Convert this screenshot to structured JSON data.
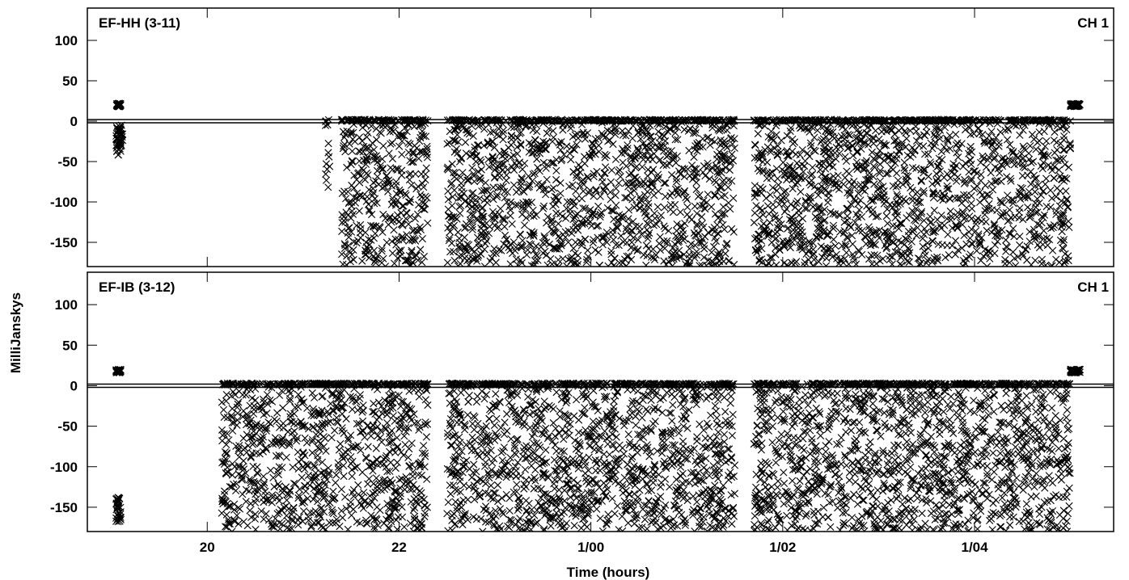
{
  "chart_data": {
    "type": "scatter",
    "marker": "x",
    "color": "#000000",
    "xlabel": "Time (hours)",
    "ylabel": "MilliJanskys",
    "xlim": [
      18.75,
      29.45
    ],
    "x_ticks": [
      {
        "value": 20,
        "label": "20"
      },
      {
        "value": 22,
        "label": "22"
      },
      {
        "value": 24,
        "label": "1/00"
      },
      {
        "value": 26,
        "label": "1/02"
      },
      {
        "value": 28,
        "label": "1/04"
      }
    ],
    "panels": [
      {
        "title": "EF-HH (3-11)",
        "channel": "CH 1",
        "ylim": [
          -180,
          140
        ],
        "y_ticks": [
          100,
          50,
          0,
          -50,
          -100,
          -150
        ],
        "groups": [
          {
            "x_range": [
              19.05,
              19.1
            ],
            "y_range": [
              18,
              22
            ],
            "dense": true
          },
          {
            "x_range": [
              19.05,
              19.12
            ],
            "y_range": [
              -42,
              -5
            ],
            "dense": true
          },
          {
            "x_range": [
              21.22,
              21.28
            ],
            "y_range": [
              -95,
              2
            ],
            "dense": false
          },
          {
            "x_range": [
              21.4,
              22.3
            ],
            "y_range": [
              -180,
              2
            ],
            "dense": true
          },
          {
            "x_range": [
              22.5,
              25.5
            ],
            "y_range": [
              -180,
              2
            ],
            "dense": true
          },
          {
            "x_range": [
              25.7,
              29.0
            ],
            "y_range": [
              -180,
              2
            ],
            "dense": true
          },
          {
            "x_range": [
              29.0,
              29.1
            ],
            "y_range": [
              18,
              22
            ],
            "dense": true
          }
        ]
      },
      {
        "title": "EF-IB (3-12)",
        "channel": "CH 1",
        "ylim": [
          -180,
          140
        ],
        "y_ticks": [
          100,
          50,
          0,
          -50,
          -100,
          -150
        ],
        "groups": [
          {
            "x_range": [
              19.05,
              19.1
            ],
            "y_range": [
              16,
              20
            ],
            "dense": true
          },
          {
            "x_range": [
              19.05,
              19.1
            ],
            "y_range": [
              -168,
              -138
            ],
            "dense": true
          },
          {
            "x_range": [
              20.15,
              22.3
            ],
            "y_range": [
              -180,
              3
            ],
            "dense": true
          },
          {
            "x_range": [
              22.5,
              25.5
            ],
            "y_range": [
              -180,
              3
            ],
            "dense": true
          },
          {
            "x_range": [
              25.7,
              29.0
            ],
            "y_range": [
              -180,
              3
            ],
            "dense": true
          },
          {
            "x_range": [
              29.0,
              29.1
            ],
            "y_range": [
              16,
              20
            ],
            "dense": true
          }
        ]
      }
    ]
  }
}
